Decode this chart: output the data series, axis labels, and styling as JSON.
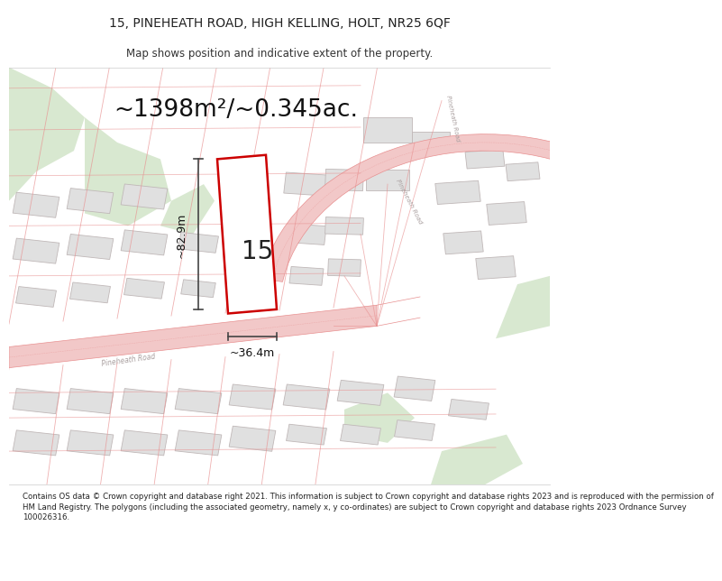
{
  "title_line1": "15, PINEHEATH ROAD, HIGH KELLING, HOLT, NR25 6QF",
  "title_line2": "Map shows position and indicative extent of the property.",
  "area_label": "~1398m²/~0.345ac.",
  "plot_number": "15",
  "dim_width": "~36.4m",
  "dim_height": "~82.9m",
  "footer_text": "Contains OS data © Crown copyright and database right 2021. This information is subject to Crown copyright and database rights 2023 and is reproduced with the permission of\nHM Land Registry. The polygons (including the associated geometry, namely x, y co-ordinates) are subject to Crown copyright and database rights 2023 Ordnance Survey\n100026316.",
  "bg_color": "#ffffff",
  "map_bg": "#f7f7f5",
  "road_color": "#f2c8c8",
  "road_line_color": "#e89090",
  "plot_fill": "#ffffff",
  "highlight_fill": "#ffffff",
  "highlight_border": "#cc0000",
  "dim_line_color": "#444444",
  "green_area_color": "#d8e8d0",
  "building_fill": "#e0e0e0",
  "building_stroke": "#c0b8b8",
  "road_label_color": "#aaa0a0",
  "title_fontsize": 10,
  "subtitle_fontsize": 8.5,
  "area_fontsize": 19,
  "plot_num_fontsize": 20,
  "dim_fontsize": 9,
  "footer_fontsize": 6.2
}
